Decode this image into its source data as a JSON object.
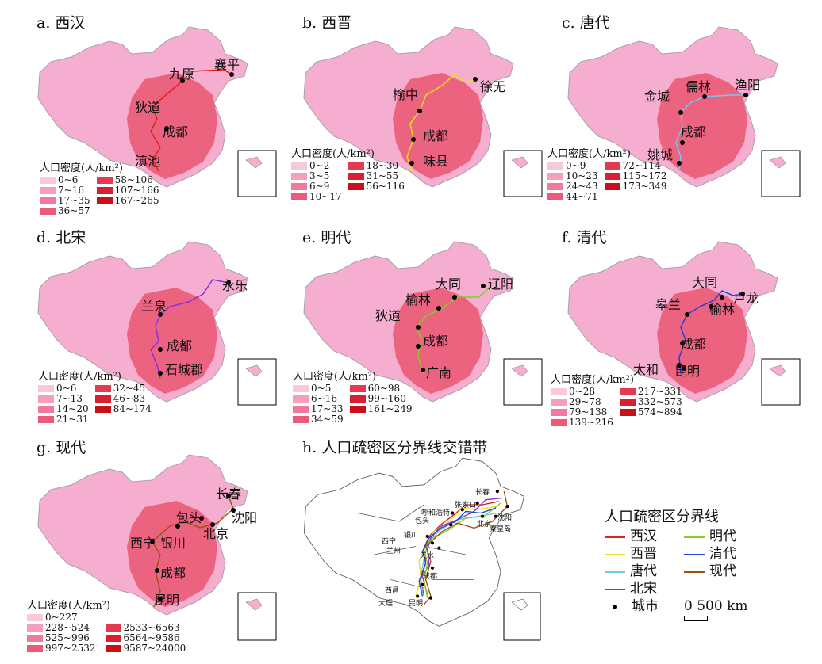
{
  "colors": {
    "base_fill": "#f6aed0",
    "border_gray": "#a8a0a8",
    "dense_red": "#e84a66",
    "line_xihan": "#e02020",
    "line_xijin": "#e8e020",
    "line_tang": "#70c8f0",
    "line_beisong": "#8a30d8",
    "line_ming": "#80d020",
    "line_qing": "#2040e0",
    "line_xiandai": "#a05010"
  },
  "panels": [
    {
      "title": "a. 西汉",
      "cities": [
        "九原",
        "襄平",
        "狄道",
        "成都",
        "滇池"
      ],
      "legend_title": "人口密度(人/km²)",
      "legend": [
        "0~6",
        "7~16",
        "17~35",
        "36~57",
        "58~106",
        "107~166",
        "167~265"
      ]
    },
    {
      "title": "b. 西晋",
      "cities": [
        "榆中",
        "徐无",
        "成都",
        "味县"
      ],
      "legend_title": "人口密度(人/km²)",
      "legend": [
        "0~2",
        "3~5",
        "6~9",
        "10~17",
        "18~30",
        "31~55",
        "56~116"
      ]
    },
    {
      "title": "c. 唐代",
      "cities": [
        "金城",
        "儒林",
        "渔阳",
        "成都",
        "姚城"
      ],
      "legend_title": "人口密度(人/km²)",
      "legend": [
        "0~9",
        "10~23",
        "24~43",
        "44~71",
        "72~114",
        "115~172",
        "173~349"
      ]
    },
    {
      "title": "d. 北宋",
      "cities": [
        "永乐",
        "兰泉",
        "成都",
        "石城郡"
      ],
      "legend_title": "人口密度(人/km²)",
      "legend": [
        "0~6",
        "7~13",
        "14~20",
        "21~31",
        "32~45",
        "46~83",
        "84~174"
      ]
    },
    {
      "title": "e. 明代",
      "cities": [
        "大同",
        "辽阳",
        "榆林",
        "狄道",
        "成都",
        "广南"
      ],
      "legend_title": "人口密度(人/km²)",
      "legend": [
        "0~5",
        "6~16",
        "17~33",
        "34~59",
        "60~98",
        "99~160",
        "161~249"
      ]
    },
    {
      "title": "f. 清代",
      "cities": [
        "大同",
        "卢龙",
        "皋兰",
        "榆林",
        "成都",
        "太和",
        "昆明"
      ],
      "legend_title": "人口密度(人/km²)",
      "legend": [
        "0~28",
        "29~78",
        "79~138",
        "139~216",
        "217~331",
        "332~573",
        "574~894"
      ]
    },
    {
      "title": "g. 现代",
      "cities": [
        "长春",
        "包头",
        "沈阳",
        "西宁",
        "银川",
        "北京",
        "成都",
        "昆明"
      ],
      "legend_title": "人口密度(人/km²)",
      "legend": [
        "0~227",
        "228~524",
        "525~996",
        "997~2532",
        "2533~6563",
        "6564~9586",
        "9587~24000"
      ]
    }
  ],
  "legend_colors": [
    "#f8c8dc",
    "#f4a0bc",
    "#f07a98",
    "#ec5a7a",
    "#e43a50",
    "#d82030",
    "#c81018"
  ],
  "panel_h": {
    "title": "h. 人口疏密区分界线交错带",
    "cities": [
      "长春",
      "张家口",
      "呼和浩特",
      "包头",
      "沈阳",
      "西宁",
      "兰州",
      "银川",
      "北京",
      "秦皇岛",
      "天水",
      "成都",
      "西昌",
      "大理",
      "昆明"
    ]
  },
  "boundary_legend": {
    "title": "人口疏密区分界线",
    "items": [
      "西汉",
      "明代",
      "西晋",
      "清代",
      "唐代",
      "现代",
      "北宋"
    ],
    "city_label": "城市",
    "scale": "0 500 km"
  }
}
